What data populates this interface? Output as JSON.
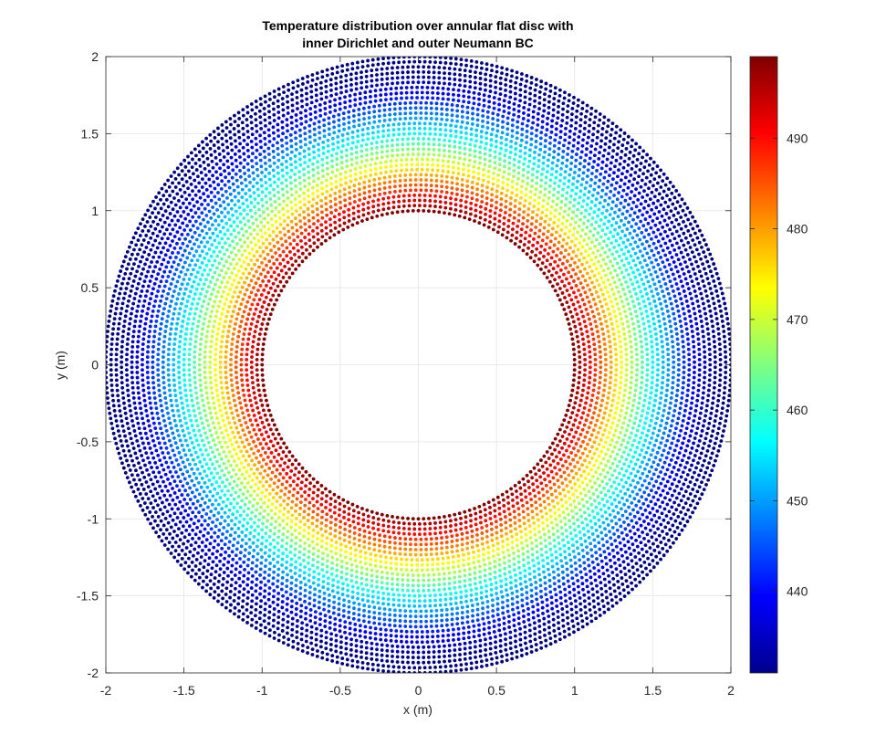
{
  "chart_data": {
    "type": "scatter",
    "title_lines": [
      "Temperature distribution over annular flat disc with",
      "inner Dirichlet and outer Neumann BC"
    ],
    "xlabel": "x (m)",
    "ylabel": "y (m)",
    "xlim": [
      -2,
      2
    ],
    "ylim": [
      -2,
      2
    ],
    "x_ticks": [
      -2,
      -1.5,
      -1,
      -0.5,
      0,
      0.5,
      1,
      1.5,
      2
    ],
    "y_ticks": [
      -2,
      -1.5,
      -1,
      -0.5,
      0,
      0.5,
      1,
      1.5,
      2
    ],
    "x_tick_labels": [
      "-2",
      "-1.5",
      "-1",
      "-0.5",
      "0",
      "0.5",
      "1",
      "1.5",
      "2"
    ],
    "y_tick_labels": [
      "-2",
      "-1.5",
      "-1",
      "-0.5",
      "0",
      "0.5",
      "1",
      "1.5",
      "2"
    ],
    "grid": true,
    "colormap": "jet",
    "colorbar": {
      "range": [
        431,
        499
      ],
      "ticks": [
        440,
        450,
        460,
        470,
        480,
        490
      ],
      "tick_labels": [
        "440",
        "450",
        "460",
        "470",
        "480",
        "490"
      ]
    },
    "field": {
      "inner_radius": 1,
      "outer_radius": 2,
      "inner_value": 499,
      "outer_value": 431,
      "profile": [
        {
          "r": 1.0,
          "value": 499
        },
        {
          "r": 1.1,
          "value": 490
        },
        {
          "r": 1.2,
          "value": 482
        },
        {
          "r": 1.3,
          "value": 473
        },
        {
          "r": 1.4,
          "value": 465
        },
        {
          "r": 1.5,
          "value": 457
        },
        {
          "r": 1.6,
          "value": 450
        },
        {
          "r": 1.7,
          "value": 443
        },
        {
          "r": 1.8,
          "value": 437
        },
        {
          "r": 1.9,
          "value": 432
        },
        {
          "r": 2.0,
          "value": 431
        }
      ]
    }
  }
}
